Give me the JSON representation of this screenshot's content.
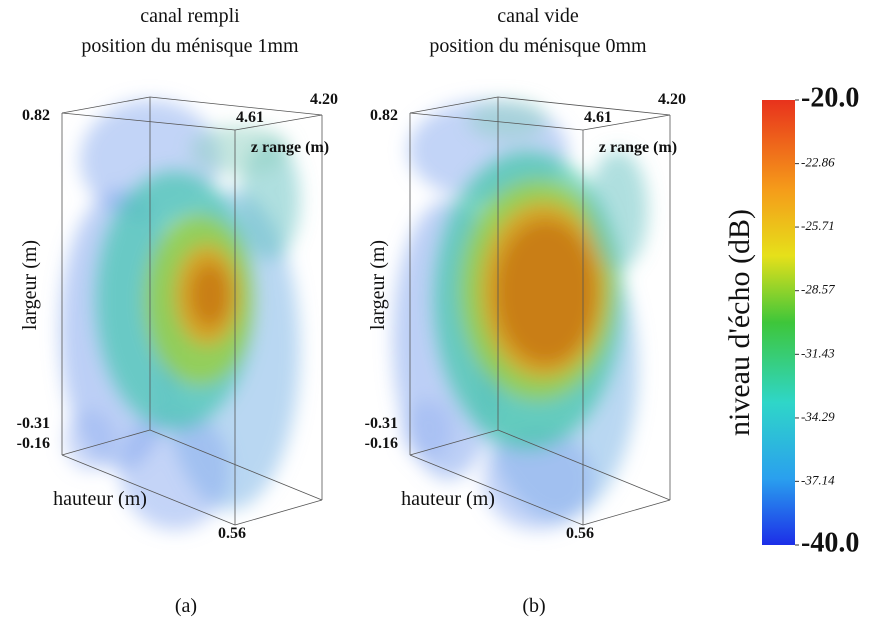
{
  "panels": [
    {
      "title": [
        "canal rempli",
        "position du ménisque 1mm"
      ],
      "y_axis_label": "largeur (m)",
      "x_axis_label": "hauteur (m)",
      "z_axis_label": "z range (m)",
      "corner_labels": {
        "top_left": "0.82",
        "top_mid": "4.61",
        "top_right": "4.20",
        "bottom_left_1": "-0.31",
        "bottom_left_2": "-0.16",
        "bottom": "0.56"
      },
      "caption": "(a)"
    },
    {
      "title": [
        "canal vide",
        "position du ménisque 0mm"
      ],
      "y_axis_label": "largeur (m)",
      "x_axis_label": "hauteur (m)",
      "z_axis_label": "z range (m)",
      "corner_labels": {
        "top_left": "0.82",
        "top_mid": "4.61",
        "top_right": "4.20",
        "bottom_left_1": "-0.31",
        "bottom_left_2": "-0.16",
        "bottom": "0.56"
      },
      "caption": "(b)"
    }
  ],
  "colorbar": {
    "label": "niveau d'écho (dB)",
    "lim": [
      -40,
      -20
    ],
    "ticks": [
      {
        "value": -20,
        "label": "-20.0"
      },
      -22.86,
      -25.71,
      -28.57,
      -31.43,
      -34.29,
      -37.14,
      {
        "value": -40,
        "label": "-40.0"
      }
    ]
  }
}
